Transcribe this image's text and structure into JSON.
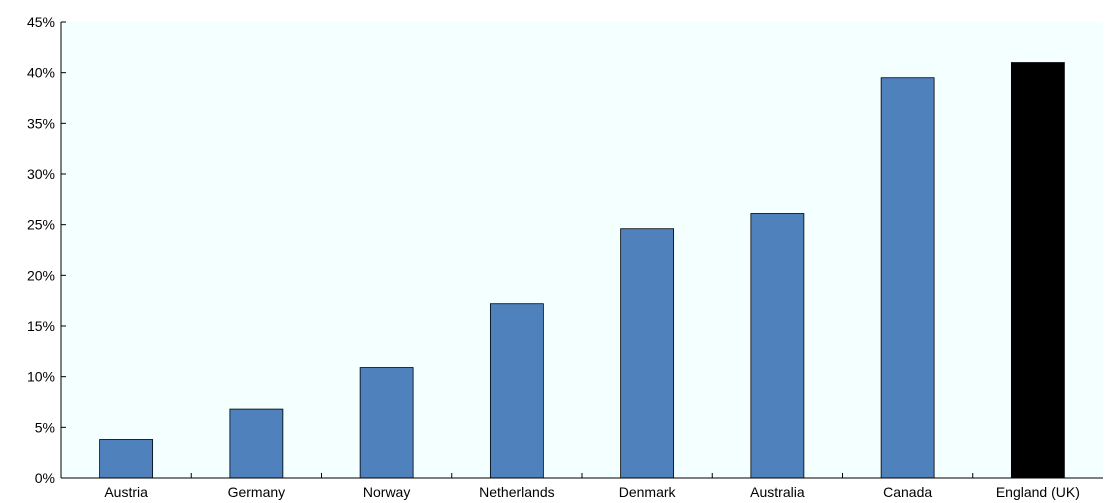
{
  "chart_data": {
    "type": "bar",
    "title": "",
    "xlabel": "",
    "ylabel": "",
    "categories": [
      "Austria",
      "Germany",
      "Norway",
      "Netherlands",
      "Denmark",
      "Australia",
      "Canada",
      "England (UK)"
    ],
    "values": [
      3.8,
      6.8,
      10.9,
      17.2,
      24.6,
      26.1,
      39.5,
      41.0
    ],
    "highlight_category": "England (UK)",
    "ylim": [
      0,
      45
    ],
    "yticks": [
      0,
      5,
      10,
      15,
      20,
      25,
      30,
      35,
      40,
      45
    ],
    "ytick_labels": [
      "0%",
      "5%",
      "10%",
      "15%",
      "20%",
      "25%",
      "30%",
      "35%",
      "40%",
      "45%"
    ],
    "grid": false,
    "legend": "none",
    "colors": {
      "bar": "#4f81bd",
      "highlight": "#000000",
      "plot_background": "#f4ffff",
      "axis": "#000000"
    }
  }
}
